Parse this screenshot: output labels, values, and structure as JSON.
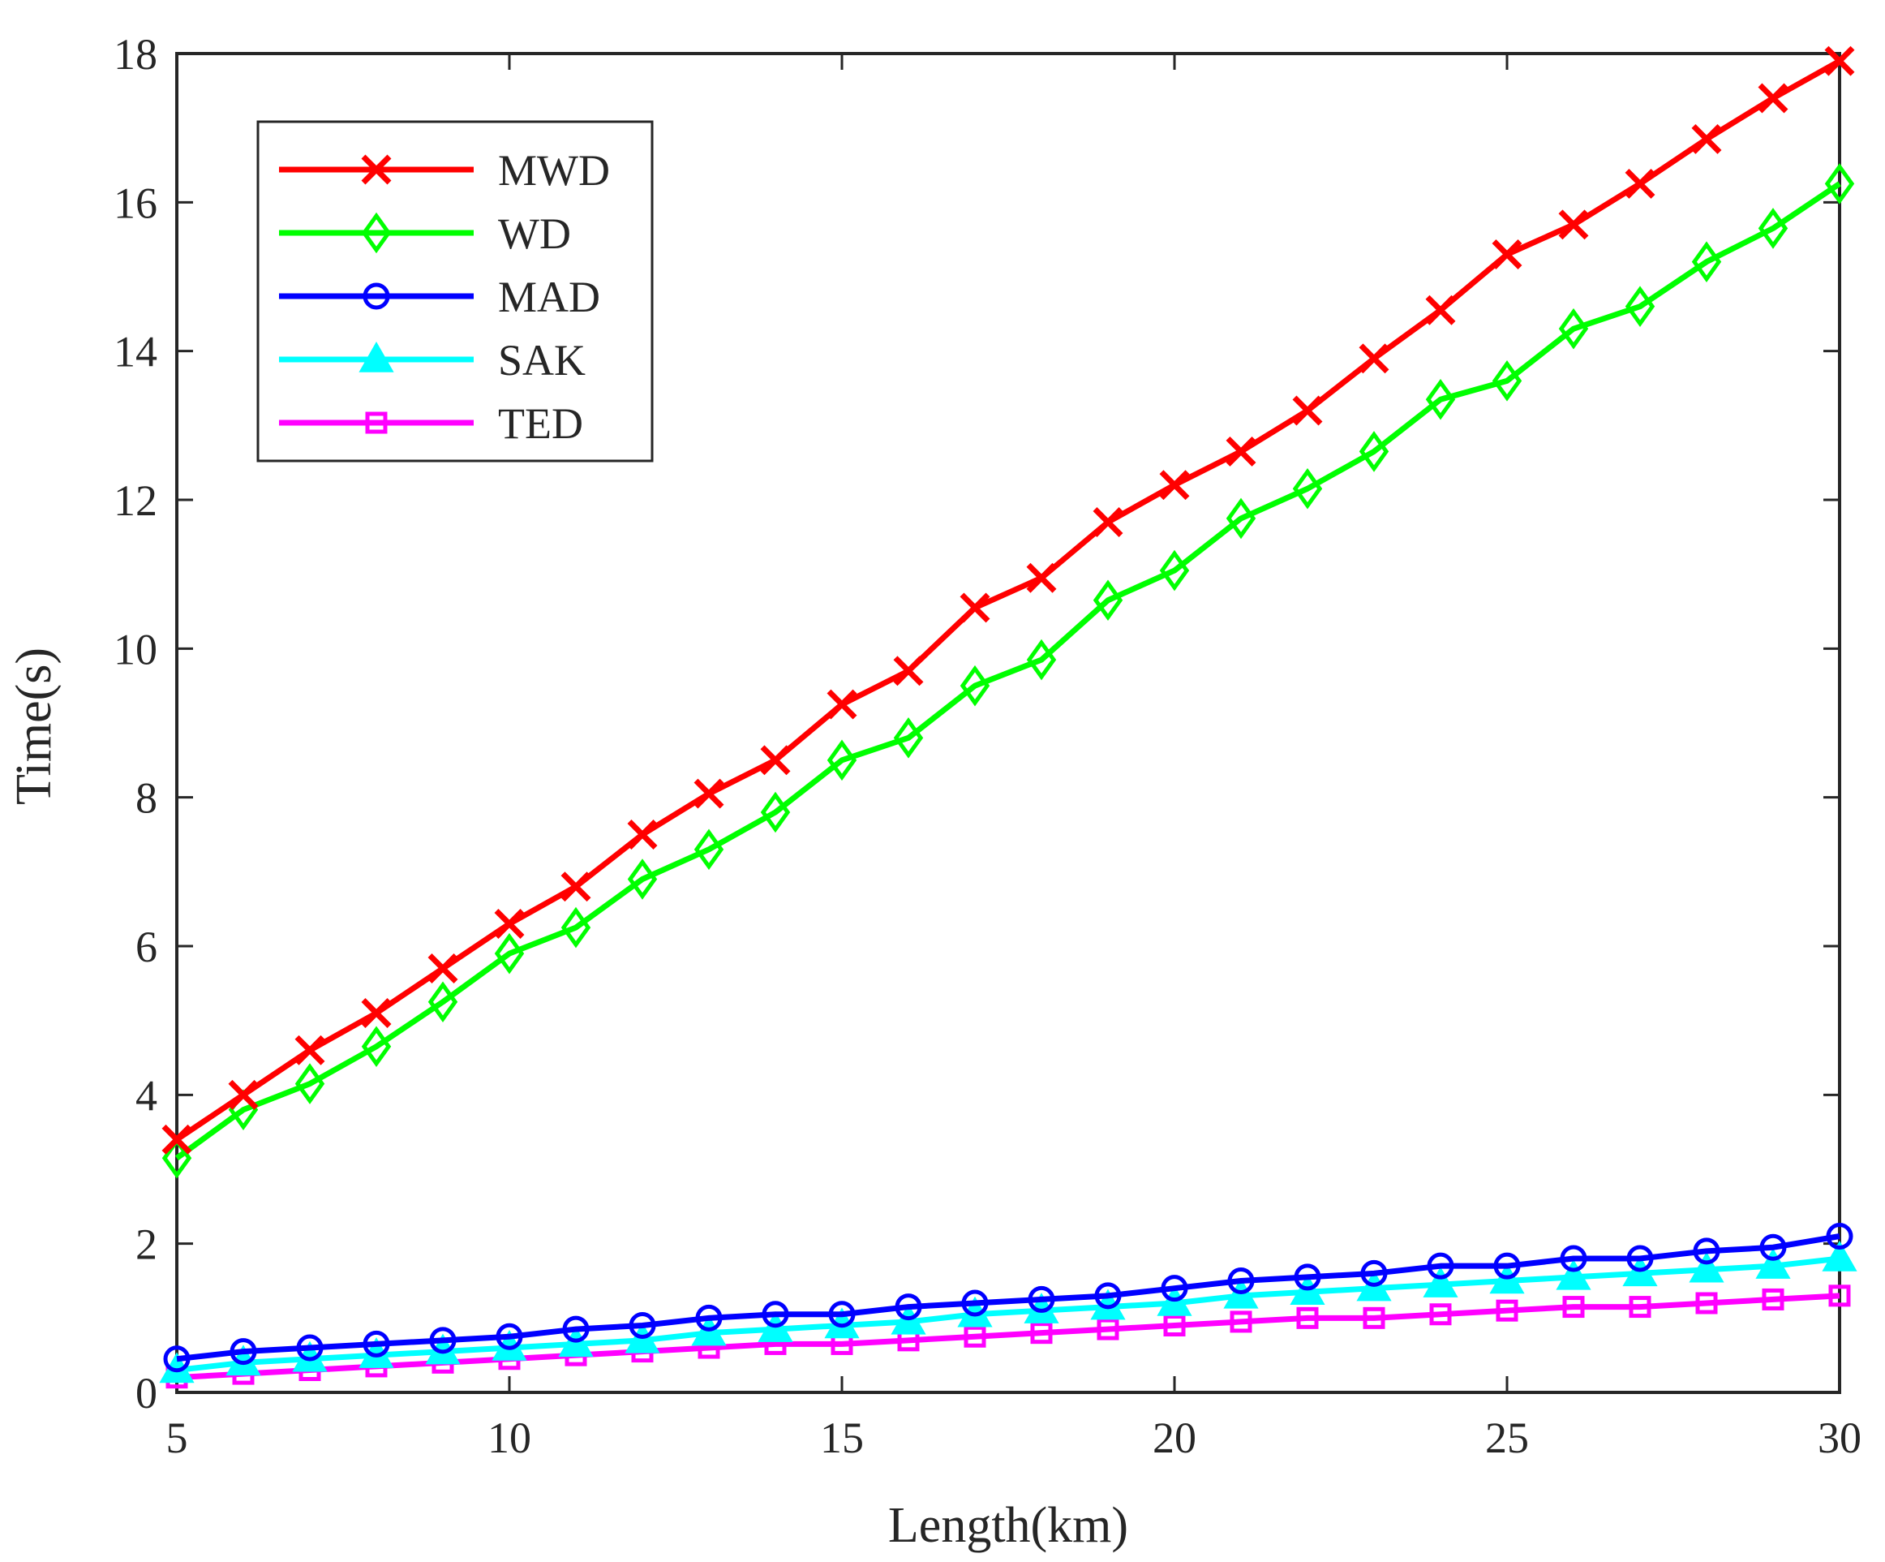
{
  "chart_data": {
    "type": "line",
    "title": "",
    "xlabel": "Length(km)",
    "ylabel": "Time(s)",
    "xlim": [
      5,
      30
    ],
    "ylim": [
      0,
      18
    ],
    "xticks": [
      5,
      10,
      15,
      20,
      25,
      30
    ],
    "yticks": [
      0,
      2,
      4,
      6,
      8,
      10,
      12,
      14,
      16,
      18
    ],
    "grid": false,
    "legend_position": "top-left",
    "x": [
      5,
      6,
      7,
      8,
      9,
      10,
      11,
      12,
      13,
      14,
      15,
      16,
      17,
      18,
      19,
      20,
      21,
      22,
      23,
      24,
      25,
      26,
      27,
      28,
      29,
      30
    ],
    "series": [
      {
        "name": "MWD",
        "color": "#ff0000",
        "marker": "x",
        "values": [
          3.4,
          4.0,
          4.6,
          5.1,
          5.7,
          6.3,
          6.8,
          7.5,
          8.05,
          8.5,
          9.25,
          9.7,
          10.55,
          10.95,
          11.7,
          12.2,
          12.65,
          13.2,
          13.9,
          14.55,
          15.3,
          15.7,
          16.25,
          16.85,
          17.4,
          17.9
        ]
      },
      {
        "name": "WD",
        "color": "#00ff00",
        "marker": "diamond",
        "values": [
          3.15,
          3.8,
          4.15,
          4.65,
          5.25,
          5.9,
          6.25,
          6.9,
          7.3,
          7.8,
          8.5,
          8.8,
          9.5,
          9.85,
          10.65,
          11.05,
          11.75,
          12.15,
          12.65,
          13.35,
          13.6,
          14.3,
          14.6,
          15.2,
          15.65,
          16.25
        ]
      },
      {
        "name": "MAD",
        "color": "#0000ff",
        "marker": "circle",
        "values": [
          0.45,
          0.55,
          0.6,
          0.65,
          0.7,
          0.75,
          0.85,
          0.9,
          1.0,
          1.05,
          1.05,
          1.15,
          1.2,
          1.25,
          1.3,
          1.4,
          1.5,
          1.55,
          1.6,
          1.7,
          1.7,
          1.8,
          1.8,
          1.9,
          1.95,
          2.1
        ]
      },
      {
        "name": "SAK",
        "color": "#00ffff",
        "marker": "triangle",
        "values": [
          0.3,
          0.4,
          0.45,
          0.5,
          0.55,
          0.6,
          0.65,
          0.7,
          0.8,
          0.85,
          0.9,
          0.95,
          1.05,
          1.1,
          1.15,
          1.2,
          1.3,
          1.35,
          1.4,
          1.45,
          1.5,
          1.55,
          1.6,
          1.65,
          1.7,
          1.8
        ]
      },
      {
        "name": "TED",
        "color": "#ff00ff",
        "marker": "square",
        "values": [
          0.2,
          0.25,
          0.3,
          0.35,
          0.4,
          0.45,
          0.5,
          0.55,
          0.6,
          0.65,
          0.65,
          0.7,
          0.75,
          0.8,
          0.85,
          0.9,
          0.95,
          1.0,
          1.0,
          1.05,
          1.1,
          1.15,
          1.15,
          1.2,
          1.25,
          1.3
        ]
      }
    ]
  }
}
